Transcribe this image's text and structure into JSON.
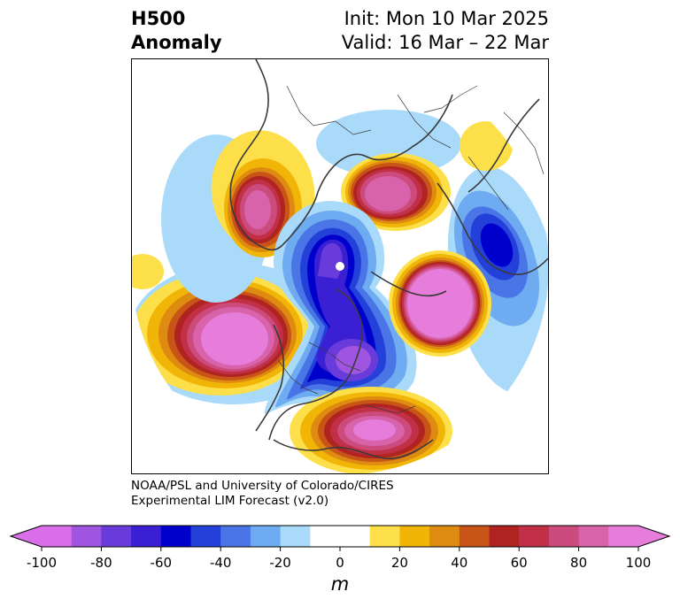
{
  "title": {
    "left_line1": "H500",
    "left_line2": "Anomaly",
    "right_line1": "Init: Mon 10 Mar 2025",
    "right_line2": "Valid: 16 Mar – 22 Mar"
  },
  "credit": {
    "line1": "NOAA/PSL and University of Colorado/CIRES",
    "line2": "Experimental LIM Forecast (v2.0)"
  },
  "colorbar": {
    "unit": "m",
    "min": -100,
    "max": 100,
    "ticks": [
      "-100",
      "-80",
      "-60",
      "-40",
      "-20",
      "0",
      "20",
      "40",
      "60",
      "80",
      "100"
    ],
    "colors": [
      "#d86fe8",
      "#9f55df",
      "#6a3bdb",
      "#3a1fd3",
      "#0000cd",
      "#2340d9",
      "#4a75e6",
      "#6fabf0",
      "#a9dafa",
      "#ffffff",
      "#ffffff",
      "#fde049",
      "#f1b507",
      "#de8b11",
      "#c85417",
      "#af2421",
      "#c23048",
      "#cb4b7c",
      "#d863ab",
      "#e67ddb"
    ],
    "under_color": "#d86fe8",
    "over_color": "#e67ddb"
  },
  "map": {
    "projection": "polar stereographic, Northern Hemisphere",
    "pole_marker_color": "#ffffff",
    "anomaly_centers": [
      {
        "region": "Gulf of Alaska / NE Pacific",
        "sign": "positive",
        "peak": 100
      },
      {
        "region": "Eastern US",
        "sign": "positive",
        "peak": 100
      },
      {
        "region": "Eastern Siberia",
        "sign": "positive",
        "peak": 100
      },
      {
        "region": "Western Siberia",
        "sign": "positive",
        "peak": 100
      },
      {
        "region": "North Africa",
        "sign": "positive",
        "peak": 20
      },
      {
        "region": "Central North America / Canada",
        "sign": "negative",
        "peak": -100
      },
      {
        "region": "Arctic Ocean",
        "sign": "negative",
        "peak": -100
      },
      {
        "region": "Western Europe / Eastern Atlantic",
        "sign": "negative",
        "peak": -80
      }
    ]
  }
}
